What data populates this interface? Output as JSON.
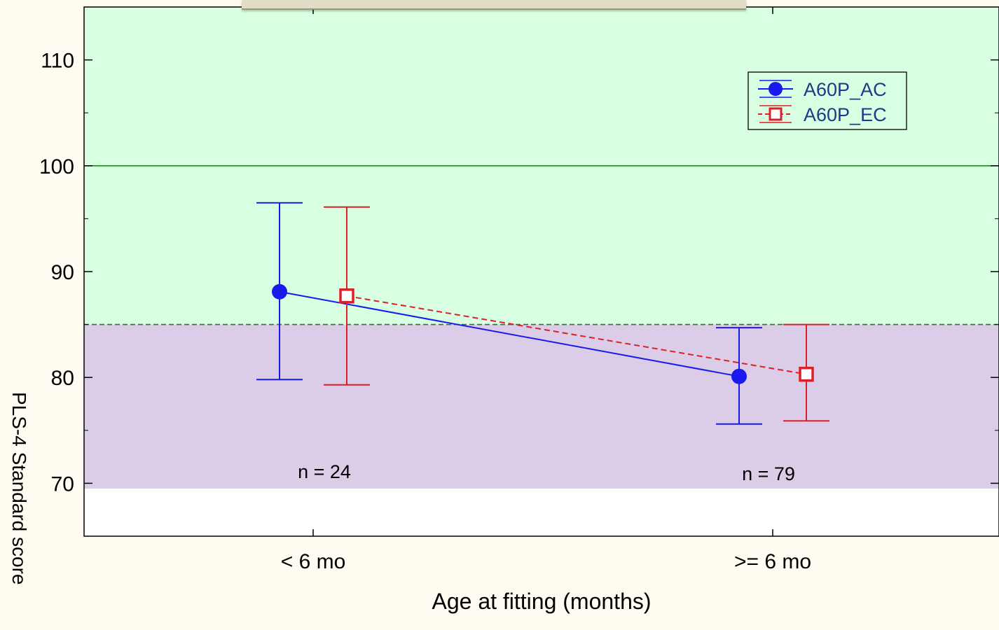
{
  "chart_data": {
    "type": "line",
    "xlabel": "Age at fitting (months)",
    "ylabel": "PLS-4 Standard score",
    "categories": [
      "< 6 mo",
      ">= 6 mo"
    ],
    "ylim": [
      65,
      115
    ],
    "yticks": [
      70,
      80,
      90,
      100,
      110
    ],
    "series": [
      {
        "name": "A60P_AC",
        "color": "#1a1aee",
        "marker": "filled-circle",
        "line": "solid",
        "values": [
          88.1,
          80.1
        ],
        "error_low": [
          79.8,
          75.6
        ],
        "error_high": [
          96.5,
          84.7
        ]
      },
      {
        "name": "A60P_EC",
        "color": "#dd1f2a",
        "marker": "open-square",
        "line": "dashed",
        "values": [
          87.7,
          80.3
        ],
        "error_low": [
          79.3,
          75.9
        ],
        "error_high": [
          96.1,
          85.0
        ]
      }
    ],
    "bands": [
      {
        "from": 85,
        "to": 115,
        "color": "#d9ffe3"
      },
      {
        "from": 69.5,
        "to": 85,
        "color": "#dbcde8"
      }
    ],
    "reference_lines": [
      {
        "y": 100,
        "style": "solid",
        "color": "#1a8a1a"
      },
      {
        "y": 85,
        "style": "dashed",
        "color": "#3a6e3a"
      }
    ],
    "annotations": [
      "n = 24",
      "n = 79"
    ],
    "legend": "top-right",
    "grid": false
  }
}
